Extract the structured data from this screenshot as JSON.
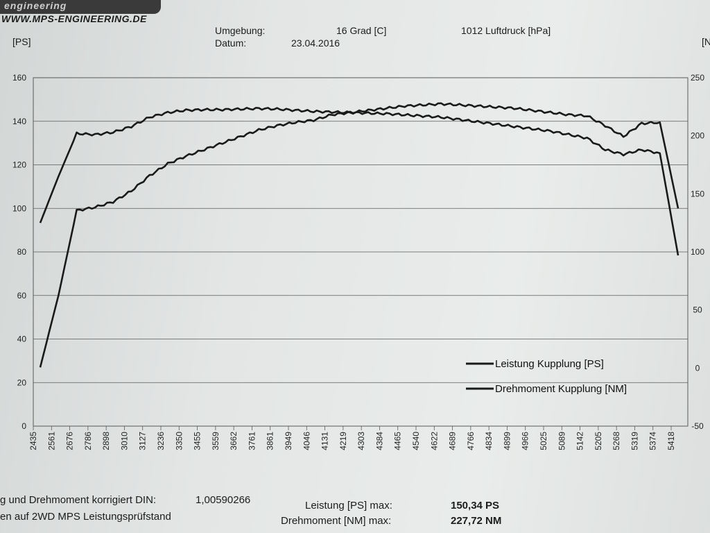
{
  "header": {
    "logo_text": "engineering",
    "url": "WWW.MPS-ENGINEERING.DE",
    "unit_left": "[PS]",
    "unit_right": "[N",
    "umgebung_label": "Umgebung:",
    "temperature": "16 Grad [C]",
    "pressure": "1012 Luftdruck [hPa]",
    "datum_label": "Datum:",
    "date": "23.04.2016"
  },
  "footer": {
    "line1": "g und Drehmoment korrigiert DIN:",
    "din_factor": "1,00590266",
    "line2": "en auf 2WD MPS Leistungsprüfstand",
    "power_max_label": "Leistung [PS] max:",
    "power_max_value": "150,34 PS",
    "torque_max_label": "Drehmoment [NM] max:",
    "torque_max_value": "227,72 NM"
  },
  "colors": {
    "line": "#1a1a1a",
    "grid": "#5a5a5a"
  },
  "chart_data": {
    "type": "line",
    "title": "",
    "xlabel": "",
    "ylabel": "[PS]",
    "y2label": "[N",
    "ylim": [
      0,
      160
    ],
    "y2lim": [
      -50,
      250
    ],
    "yticks": [
      0,
      20,
      40,
      60,
      80,
      100,
      120,
      140,
      160
    ],
    "y2ticks": [
      -50,
      0,
      50,
      100,
      150,
      200,
      250
    ],
    "grid": true,
    "legend_position": "bottom-right",
    "categories": [
      "2435",
      "2561",
      "2676",
      "2786",
      "2898",
      "3010",
      "3127",
      "3236",
      "3350",
      "3455",
      "3559",
      "3662",
      "3761",
      "3861",
      "3949",
      "4046",
      "4131",
      "4219",
      "4303",
      "4384",
      "4465",
      "4540",
      "4622",
      "4689",
      "4766",
      "4834",
      "4899",
      "4966",
      "5025",
      "5089",
      "5142",
      "5205",
      "5268",
      "5319",
      "5374",
      "5418"
    ],
    "series": [
      {
        "name": "Leistung Kupplung [PS]",
        "axis": "left",
        "values": [
          27,
          60,
          99,
          100.5,
          103,
          108,
          115,
          120.5,
          124,
          127,
          130,
          133,
          136,
          138,
          139.5,
          140.5,
          143,
          144,
          145,
          146,
          147,
          147.5,
          148,
          147.5,
          147,
          146.5,
          146,
          145,
          144,
          143,
          142.5,
          138,
          133,
          139,
          139.5,
          100
        ]
      },
      {
        "name": "Drehmoment Kupplung [NM]",
        "axis": "right",
        "values": [
          125,
          165,
          202,
          201,
          203,
          208,
          216,
          220,
          222,
          222.5,
          222.5,
          223,
          223.5,
          223,
          222,
          221,
          220.5,
          220,
          219.5,
          219,
          218,
          217,
          216,
          214,
          212,
          210,
          208,
          206,
          204,
          201,
          198,
          188,
          184,
          188,
          185,
          97
        ]
      }
    ]
  }
}
